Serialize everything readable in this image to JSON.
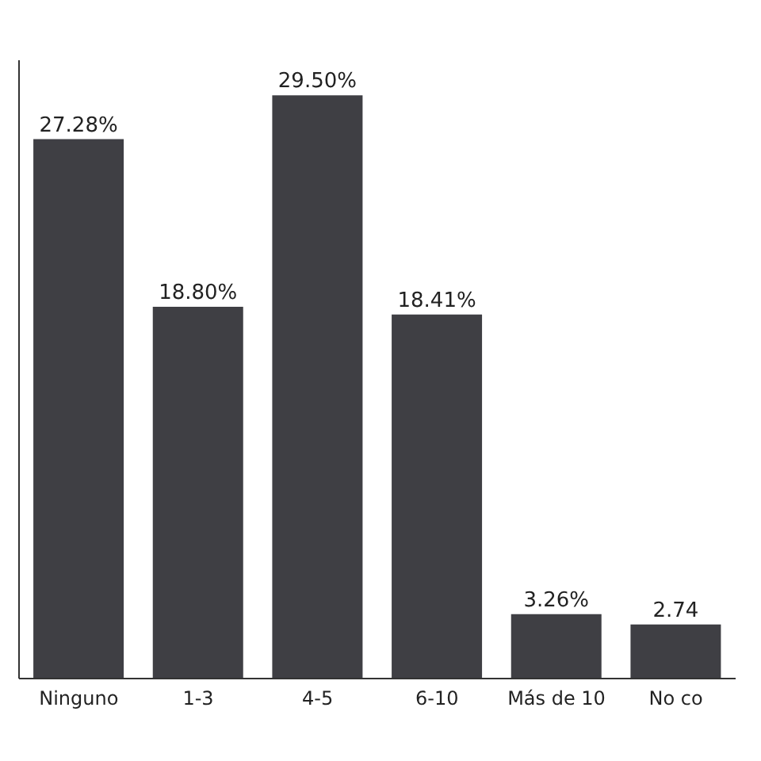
{
  "chart_data": {
    "type": "bar",
    "categories": [
      "Ninguno",
      "1-3",
      "4-5",
      "6-10",
      "Más de 10",
      "No co"
    ],
    "values": [
      27.28,
      18.8,
      29.5,
      18.41,
      3.26,
      2.74
    ],
    "value_labels": [
      "27.28%",
      "18.80%",
      "29.50%",
      "18.41%",
      "3.26%",
      "2.74"
    ],
    "color": "#3f3f44",
    "tick_labels": "x"
  }
}
